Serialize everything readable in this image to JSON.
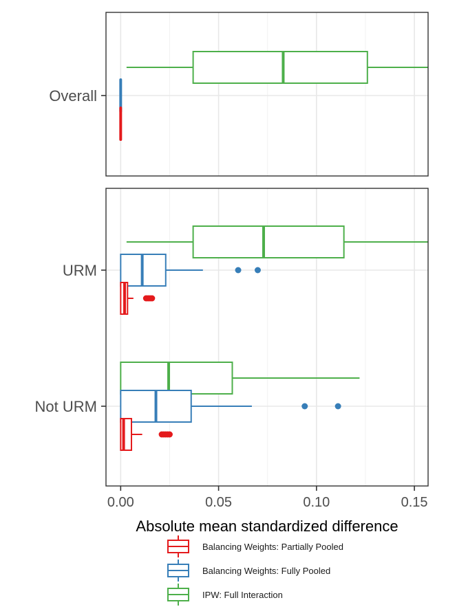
{
  "chart_data": {
    "type": "boxplot",
    "orientation": "horizontal",
    "xlabel": "Absolute mean standardized difference",
    "xlim": [
      -0.0075,
      0.157
    ],
    "xticks": [
      0.0,
      0.05,
      0.1,
      0.15
    ],
    "xtick_labels": [
      "0.00",
      "0.05",
      "0.10",
      "0.15"
    ],
    "minor_gridlines": [
      0.025,
      0.075,
      0.125
    ],
    "grid": true,
    "legend_position": "bottom",
    "series": [
      {
        "key": "partial",
        "name": "Balancing Weights: Partially Pooled",
        "color": "#e41a1c"
      },
      {
        "key": "full",
        "name": "Balancing Weights: Fully Pooled",
        "color": "#377eb8"
      },
      {
        "key": "ipw",
        "name": "IPW: Full Interaction",
        "color": "#4daf4a"
      }
    ],
    "panels": [
      {
        "name": "top",
        "categories": [
          {
            "label": "Overall",
            "boxes": [
              {
                "series": "ipw",
                "min": 0.003,
                "q1": 0.037,
                "median": 0.083,
                "q3": 0.126,
                "max": 0.157,
                "outliers": []
              },
              {
                "series": "full",
                "min": 0.0,
                "q1": 0.0,
                "median": 0.0,
                "q3": 0.0,
                "max": 0.0,
                "outliers": []
              },
              {
                "series": "partial",
                "min": 0.0,
                "q1": 0.0,
                "median": 0.0,
                "q3": 0.0,
                "max": 0.0,
                "outliers": []
              }
            ]
          }
        ]
      },
      {
        "name": "bottom",
        "categories": [
          {
            "label": "URM",
            "boxes": [
              {
                "series": "ipw",
                "min": 0.003,
                "q1": 0.037,
                "median": 0.073,
                "q3": 0.114,
                "max": 0.157,
                "outliers": []
              },
              {
                "series": "full",
                "min": 0.0,
                "q1": 0.0,
                "median": 0.011,
                "q3": 0.023,
                "max": 0.042,
                "outliers": [
                  0.06,
                  0.07
                ]
              },
              {
                "series": "partial",
                "min": 0.0,
                "q1": 0.0,
                "median": 0.002,
                "q3": 0.0035,
                "max": 0.0065,
                "outliers": [
                  0.013,
                  0.014,
                  0.015,
                  0.016
                ]
              }
            ]
          },
          {
            "label": "Not URM",
            "boxes": [
              {
                "series": "ipw",
                "min": 0.0,
                "q1": 0.0,
                "median": 0.0245,
                "q3": 0.057,
                "max": 0.122,
                "outliers": []
              },
              {
                "series": "full",
                "min": 0.0,
                "q1": 0.0,
                "median": 0.018,
                "q3": 0.036,
                "max": 0.067,
                "outliers": [
                  0.094,
                  0.111
                ]
              },
              {
                "series": "partial",
                "min": 0.0,
                "q1": 0.0,
                "median": 0.0015,
                "q3": 0.0055,
                "max": 0.011,
                "outliers": [
                  0.021,
                  0.022,
                  0.023,
                  0.024,
                  0.025
                ]
              }
            ]
          }
        ]
      }
    ]
  }
}
